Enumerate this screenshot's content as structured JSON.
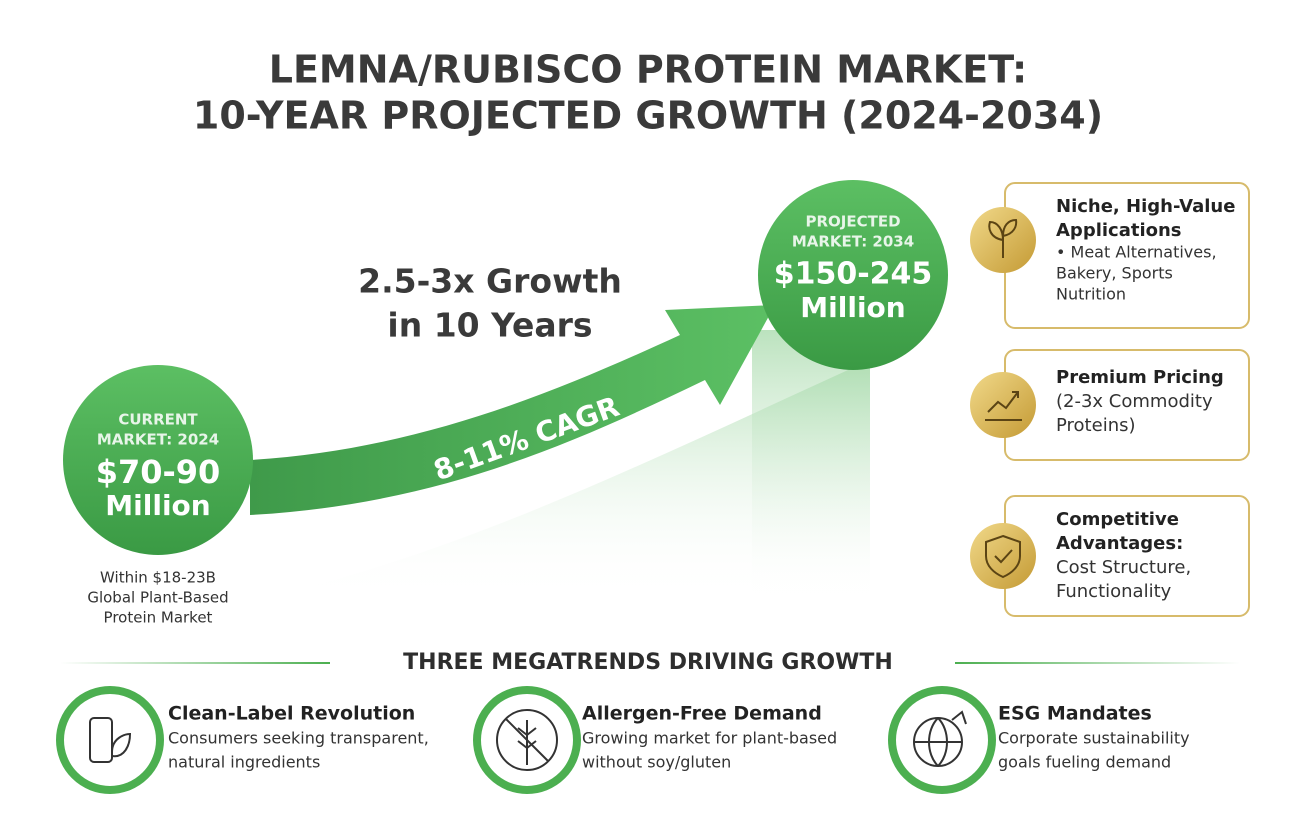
{
  "title": [
    "LEMNA/RUBISCO PROTEIN MARKET:",
    "10-YEAR PROJECTED GROWTH (2024-2034)"
  ],
  "current": {
    "label": [
      "CURRENT",
      "MARKET: 2024"
    ],
    "value": [
      "$70-90",
      "Million"
    ],
    "note": [
      "Within $18-23B",
      "Global Plant-Based",
      "Protein Market"
    ]
  },
  "growth": {
    "headline": [
      "2.5-3x Growth",
      "in 10 Years"
    ],
    "cagr": "8-11% CAGR"
  },
  "projected": {
    "label": [
      "PROJECTED",
      "MARKET: 2034"
    ],
    "value": [
      "$150-245",
      "Million"
    ]
  },
  "advantages": [
    {
      "title": [
        "Niche, High-Value",
        "Applications"
      ],
      "text": [
        "• Meat Alternatives,",
        "Bakery, Sports",
        "Nutrition"
      ]
    },
    {
      "title": [
        "Premium Pricing"
      ],
      "text": [
        "(2-3x Commodity",
        "Proteins)"
      ]
    },
    {
      "title": [
        "Competitive",
        "Advantages:"
      ],
      "text": [
        "Cost Structure,",
        "Functionality"
      ]
    }
  ],
  "megatrends": {
    "heading": "THREE MEGATRENDS DRIVING GROWTH",
    "items": [
      {
        "title": "Clean-Label Revolution",
        "text": [
          "Consumers seeking transparent,",
          "natural ingredients"
        ]
      },
      {
        "title": "Allergen-Free Demand",
        "text": [
          "Growing market for plant-based",
          "without soy/gluten"
        ]
      },
      {
        "title": "ESG Mandates",
        "text": [
          "Corporate sustainability",
          "goals fueling demand"
        ]
      }
    ]
  }
}
